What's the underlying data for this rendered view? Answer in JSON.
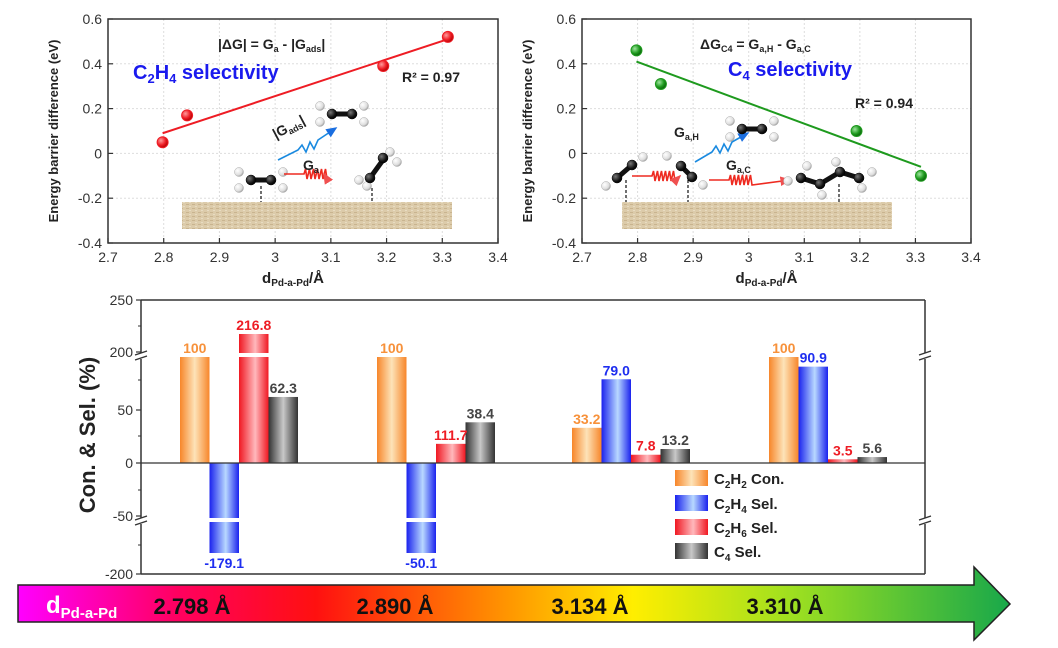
{
  "chart_data": [
    {
      "id": "c2h4",
      "type": "scatter",
      "title": "",
      "xlabel_main": "d",
      "xlabel_sub": "Pd-a-Pd",
      "xlabel_tail": "/Å",
      "ylabel": "Energy barrier difference (eV)",
      "xlim": [
        2.7,
        3.4
      ],
      "ylim": [
        -0.4,
        0.6
      ],
      "xticks": [
        2.7,
        2.8,
        2.9,
        3,
        3.1,
        3.2,
        3.3,
        3.4
      ],
      "xtick_labels": [
        "2.7",
        "2.8",
        "2.9",
        "3",
        "3.1",
        "3.2",
        "3.3",
        "3.4"
      ],
      "yticks": [
        -0.4,
        -0.2,
        0,
        0.2,
        0.4,
        0.6
      ],
      "ytick_labels": [
        "-0.4",
        "-0.2",
        "0",
        "0.2",
        "0.4",
        "0.6"
      ],
      "grid": true,
      "series": [
        {
          "name": "C2H4 selectivity",
          "color": "#ee1c24",
          "x": [
            2.798,
            2.842,
            3.194,
            3.31
          ],
          "y": [
            0.05,
            0.17,
            0.39,
            0.52
          ],
          "fit": {
            "x": [
              2.798,
              3.31
            ],
            "y": [
              0.09,
              0.51
            ],
            "r2_label": "R² = 0.97"
          }
        }
      ],
      "annotations": {
        "equation": {
          "main": "|ΔG| = G",
          "sub1": "a",
          "mid": " - |G",
          "sub2": "ads",
          "end": "|"
        },
        "selectivity": {
          "pre": "C",
          "s1": "2",
          "mid": "H",
          "s2": "4",
          "post": " selectivity",
          "color": "#1a1aee"
        },
        "r2": "R² = 0.97",
        "arrow_up": {
          "main": "|G",
          "sub": "ads",
          "end": "|"
        },
        "arrow_right": {
          "main": "G",
          "sub": "a"
        }
      }
    },
    {
      "id": "c4",
      "type": "scatter",
      "xlabel_main": "d",
      "xlabel_sub": "Pd-a-Pd",
      "xlabel_tail": "/Å",
      "ylabel": "Energy barrier difference (eV)",
      "xlim": [
        2.7,
        3.4
      ],
      "ylim": [
        -0.4,
        0.6
      ],
      "xticks": [
        2.7,
        2.8,
        2.9,
        3,
        3.1,
        3.2,
        3.3,
        3.4
      ],
      "xtick_labels": [
        "2.7",
        "2.8",
        "2.9",
        "3",
        "3.1",
        "3.2",
        "3.3",
        "3.4"
      ],
      "yticks": [
        -0.4,
        -0.2,
        0,
        0.2,
        0.4,
        0.6
      ],
      "ytick_labels": [
        "-0.4",
        "-0.2",
        "0",
        "0.2",
        "0.4",
        "0.6"
      ],
      "grid": true,
      "series": [
        {
          "name": "C4 selectivity",
          "color": "#1e9a1e",
          "x": [
            2.798,
            2.842,
            3.194,
            3.31
          ],
          "y": [
            0.46,
            0.31,
            0.1,
            -0.1
          ],
          "fit": {
            "x": [
              2.798,
              3.31
            ],
            "y": [
              0.41,
              -0.06
            ],
            "r2_label": "R² = 0.94"
          }
        }
      ],
      "annotations": {
        "equation": {
          "main": "ΔG",
          "sub1": "C4",
          "mid": " = G",
          "sub2": "a,H",
          "mid2": " - G",
          "sub3": "a,C"
        },
        "selectivity": {
          "pre": "C",
          "s1": "4",
          "post": " selectivity",
          "color": "#1a1aee"
        },
        "r2": "R² = 0.94",
        "arrow_up": {
          "main": "G",
          "sub": "a,H"
        },
        "arrow_right": {
          "main": "G",
          "sub": "a,C"
        }
      }
    },
    {
      "id": "bars",
      "type": "bar",
      "ylabel": "Con. & Sel. (%)",
      "ylim": [
        -200,
        250
      ],
      "yticks": [
        250,
        200,
        50,
        0,
        -50,
        -200
      ],
      "ytick_labels": [
        "250",
        "200",
        "50",
        "0",
        "-50",
        "-200"
      ],
      "axis_breaks": [
        [
          50,
          200
        ],
        [
          -50,
          -200
        ]
      ],
      "categories": [
        "2.798 Å",
        "2.890 Å",
        "3.134 Å",
        "3.310 Å"
      ],
      "series": [
        {
          "name": "C2H2 Con.",
          "label": {
            "a": "C",
            "s1": "2",
            "b": "H",
            "s2": "2",
            "c": " Con."
          },
          "color": "#f7913a",
          "label_color": "#f7913a",
          "values": [
            100,
            100,
            33.2,
            100
          ],
          "labels": [
            "100",
            "100",
            "33.2",
            "100"
          ]
        },
        {
          "name": "C2H4 Sel.",
          "label": {
            "a": "C",
            "s1": "2",
            "b": "H",
            "s2": "4",
            "c": " Sel."
          },
          "color": "#1e2ef0",
          "label_color": "#1e2ef0",
          "values": [
            -179.1,
            -50.1,
            79.0,
            90.9
          ],
          "labels": [
            "-179.1",
            "-50.1",
            "79.0",
            "90.9"
          ]
        },
        {
          "name": "C2H6 Sel.",
          "label": {
            "a": "C",
            "s1": "2",
            "b": "H",
            "s2": "6",
            "c": " Sel."
          },
          "color": "#f0202a",
          "label_color": "#ee1c24",
          "values": [
            216.8,
            111.7,
            7.8,
            3.5
          ],
          "labels": [
            "216.8",
            "111.7",
            "7.8",
            "3.5"
          ]
        },
        {
          "name": "C4 Sel.",
          "label": {
            "a": "C",
            "s1": "4",
            "b": "",
            "s2": "",
            "c": " Sel."
          },
          "color": "#555555",
          "label_color": "#444444",
          "values": [
            62.3,
            38.4,
            13.2,
            5.6
          ],
          "labels": [
            "62.3",
            "38.4",
            "13.2",
            "5.6"
          ]
        }
      ],
      "legend": "bottom-right"
    }
  ],
  "arrow": {
    "label_main": "d",
    "label_sub": "Pd-a-Pd",
    "values": [
      "2.798 Å",
      "2.890 Å",
      "3.134 Å",
      "3.310 Å"
    ],
    "gradient": [
      "#ff00ff",
      "#ff0040",
      "#ff1a00",
      "#ff8c00",
      "#ffee00",
      "#c8ef10",
      "#66cc33",
      "#18a84a"
    ]
  }
}
